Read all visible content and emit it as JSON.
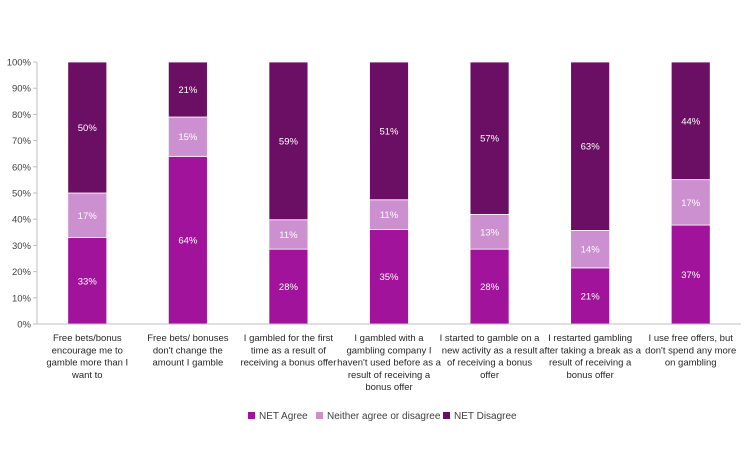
{
  "chart_data": {
    "type": "bar",
    "stacked": true,
    "normalized": true,
    "categories": [
      "Free bets/bonus encourage me to gamble more than I want to",
      "Free bets/ bonuses don't change the amount I gamble",
      "I gambled for the first time as a result of receiving a bonus offer",
      "I gambled with a gambling company I haven't used before as a result of receiving a bonus offer",
      "I started to gamble on a new activity as a result of receiving a bonus offer",
      "I restarted gambling after taking a break as a result of receiving a bonus offer",
      "I use free offers, but don't spend any more on gambling"
    ],
    "category_lines": [
      [
        "Free bets/bonus",
        "encourage me to",
        "gamble more than I",
        "want to"
      ],
      [
        "Free bets/ bonuses",
        "don't change the",
        "amount I gamble"
      ],
      [
        "I gambled for the first",
        "time as a result of",
        "receiving a bonus offer"
      ],
      [
        "I gambled with a",
        "gambling company I",
        "haven't used before as a",
        "result of receiving a",
        "bonus offer"
      ],
      [
        "I started to gamble on a",
        "new activity as a result",
        "of receiving a bonus",
        "offer"
      ],
      [
        "I restarted gambling",
        "after taking a break as a",
        "result of receiving a",
        "bonus offer"
      ],
      [
        "I use free offers, but",
        "don't spend any more",
        "on gambling"
      ]
    ],
    "series": [
      {
        "name": "NET Agree",
        "color": "#a0139a",
        "values": [
          33,
          64,
          28,
          35,
          28,
          21,
          37
        ],
        "labels": [
          "33%",
          "64%",
          "28%",
          "35%",
          "28%",
          "21%",
          "37%"
        ]
      },
      {
        "name": "Neither agree or disagree",
        "color": "#cc8fd0",
        "values": [
          17,
          15,
          11,
          11,
          13,
          14,
          17
        ],
        "labels": [
          "17%",
          "15%",
          "11%",
          "11%",
          "13%",
          "14%",
          "17%"
        ]
      },
      {
        "name": "NET Disagree",
        "color": "#6a0f63",
        "values": [
          50,
          21,
          59,
          51,
          57,
          63,
          44
        ],
        "labels": [
          "50%",
          "21%",
          "59%",
          "51%",
          "57%",
          "63%",
          "44%"
        ]
      }
    ],
    "ylim": [
      0,
      100
    ],
    "yticks": [
      "0%",
      "10%",
      "20%",
      "30%",
      "40%",
      "50%",
      "60%",
      "70%",
      "80%",
      "90%",
      "100%"
    ],
    "grid": false,
    "legend_position": "bottom",
    "title": "",
    "xlabel": "",
    "ylabel": ""
  }
}
